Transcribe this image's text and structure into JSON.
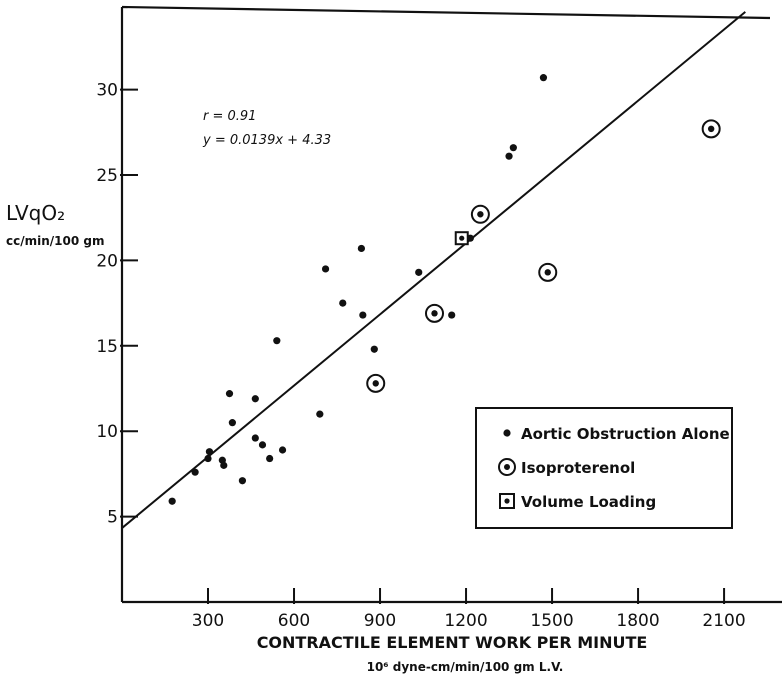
{
  "chart_data": {
    "type": "scatter",
    "title": "",
    "xlabel": "CONTRACTILE ELEMENT WORK PER MINUTE",
    "xlabel_units": "10⁶ dyne-cm/min/100 gm L.V.",
    "ylabel": "LVqO₂",
    "ylabel_units": "cc/min/100 gm",
    "xlim": [
      0,
      2250
    ],
    "ylim": [
      0,
      35
    ],
    "x_ticks": [
      300,
      600,
      900,
      1200,
      1500,
      1800,
      2100
    ],
    "y_ticks": [
      5,
      10,
      15,
      20,
      25,
      30
    ],
    "grid": false,
    "legend_position": "bottom-right",
    "annotations": [
      "r = 0.91",
      "y = 0.0139x + 4.33"
    ],
    "regression": {
      "slope": 0.0139,
      "intercept": 4.33
    },
    "series": [
      {
        "name": "Aortic Obstruction Alone",
        "marker": "dot",
        "points": [
          {
            "x": 175,
            "y": 5.9
          },
          {
            "x": 255,
            "y": 7.6
          },
          {
            "x": 300,
            "y": 8.4
          },
          {
            "x": 305,
            "y": 8.8
          },
          {
            "x": 350,
            "y": 8.3
          },
          {
            "x": 355,
            "y": 8.0
          },
          {
            "x": 375,
            "y": 12.2
          },
          {
            "x": 385,
            "y": 10.5
          },
          {
            "x": 420,
            "y": 7.1
          },
          {
            "x": 465,
            "y": 11.9
          },
          {
            "x": 465,
            "y": 9.6
          },
          {
            "x": 490,
            "y": 9.2
          },
          {
            "x": 515,
            "y": 8.4
          },
          {
            "x": 540,
            "y": 15.3
          },
          {
            "x": 560,
            "y": 8.9
          },
          {
            "x": 690,
            "y": 11.0
          },
          {
            "x": 710,
            "y": 19.5
          },
          {
            "x": 770,
            "y": 17.5
          },
          {
            "x": 835,
            "y": 20.7
          },
          {
            "x": 840,
            "y": 16.8
          },
          {
            "x": 880,
            "y": 14.8
          },
          {
            "x": 1035,
            "y": 19.3
          },
          {
            "x": 1150,
            "y": 16.8
          },
          {
            "x": 1215,
            "y": 21.3
          },
          {
            "x": 1350,
            "y": 26.1
          },
          {
            "x": 1365,
            "y": 26.6
          },
          {
            "x": 1470,
            "y": 30.7
          }
        ]
      },
      {
        "name": "Isoproterenol",
        "marker": "circled-dot",
        "points": [
          {
            "x": 885,
            "y": 12.8
          },
          {
            "x": 1090,
            "y": 16.9
          },
          {
            "x": 1250,
            "y": 22.7
          },
          {
            "x": 1485,
            "y": 19.3
          },
          {
            "x": 2055,
            "y": 27.7
          }
        ]
      },
      {
        "name": "Volume Loading",
        "marker": "boxed-dot",
        "points": [
          {
            "x": 1185,
            "y": 21.3
          }
        ]
      }
    ]
  }
}
